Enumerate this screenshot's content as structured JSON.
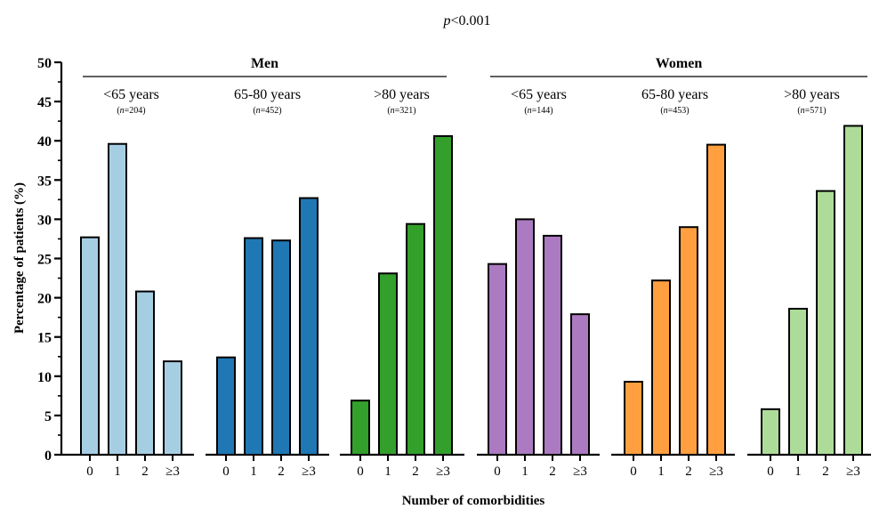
{
  "chart_data": {
    "type": "bar",
    "title_prefix": "p",
    "title_rest": "<0.001",
    "xlabel": "Number of comorbidities",
    "ylabel": "Percentage of patients (%)",
    "ylim": [
      0,
      50
    ],
    "yticks": [
      0,
      5,
      10,
      15,
      20,
      25,
      30,
      35,
      40,
      45,
      50
    ],
    "categories": [
      "0",
      "1",
      "2",
      "≥3"
    ],
    "sexes": [
      {
        "label": "Men"
      },
      {
        "label": "Women"
      }
    ],
    "groups": [
      {
        "label": "<65 years",
        "n_prefix": "n",
        "n_rest": "=204",
        "color": "#a6cee3",
        "values": [
          27.7,
          39.6,
          20.8,
          11.9
        ]
      },
      {
        "label": "65-80 years",
        "n_prefix": "n",
        "n_rest": "=452",
        "color": "#1f78b4",
        "values": [
          12.4,
          27.6,
          27.3,
          32.7
        ]
      },
      {
        "label": ">80 years",
        "n_prefix": "n",
        "n_rest": "=321",
        "color": "#33a02c",
        "values": [
          6.9,
          23.1,
          29.4,
          40.6
        ]
      },
      {
        "label": "<65 years",
        "n_prefix": "n",
        "n_rest": "=144",
        "color": "#ab7ac1",
        "values": [
          24.3,
          30.0,
          27.9,
          17.9
        ]
      },
      {
        "label": "65-80 years",
        "n_prefix": "n",
        "n_rest": "=453",
        "color": "#ff9f3f",
        "values": [
          9.3,
          22.2,
          29.0,
          39.5
        ]
      },
      {
        "label": ">80 years",
        "n_prefix": "n",
        "n_rest": "=571",
        "color": "#addc98",
        "values": [
          5.8,
          18.6,
          33.6,
          41.9
        ]
      }
    ]
  }
}
